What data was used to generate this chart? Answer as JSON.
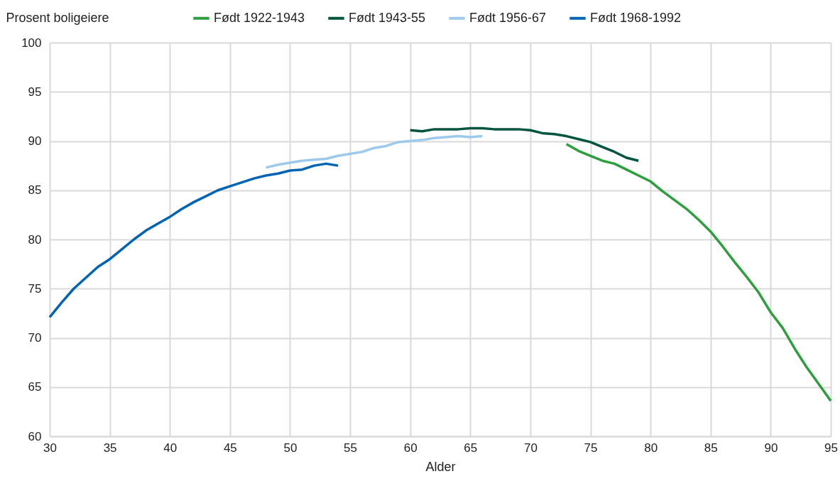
{
  "chart_data": {
    "type": "line",
    "xlabel": "Alder",
    "ylabel": "Prosent boligeiere",
    "xlim": [
      30,
      95
    ],
    "xticks": [
      30,
      35,
      40,
      45,
      50,
      55,
      60,
      65,
      70,
      75,
      80,
      85,
      90,
      95
    ],
    "ylim": [
      60,
      100
    ],
    "yticks": [
      60,
      65,
      70,
      75,
      80,
      85,
      90,
      95,
      100
    ],
    "grid": true,
    "legend": "top",
    "line_style": "solid",
    "marker": "none",
    "series": [
      {
        "name": "Født 1922-1943",
        "color": "#2e9e3e",
        "x": [
          73,
          74,
          75,
          76,
          77,
          78,
          79,
          80,
          81,
          82,
          83,
          84,
          85,
          86,
          87,
          88,
          89,
          90,
          91,
          92,
          93,
          94,
          95
        ],
        "values": [
          89.7,
          89.0,
          88.5,
          88.0,
          87.7,
          87.1,
          86.5,
          85.9,
          84.9,
          84.0,
          83.1,
          82.0,
          80.8,
          79.3,
          77.7,
          76.2,
          74.6,
          72.6,
          71.0,
          68.9,
          67.0,
          65.3,
          63.6
        ]
      },
      {
        "name": "Født 1943-55",
        "color": "#005440",
        "x": [
          60,
          61,
          62,
          63,
          64,
          65,
          66,
          67,
          68,
          69,
          70,
          71,
          72,
          73,
          74,
          75,
          76,
          77,
          78,
          79
        ],
        "values": [
          91.1,
          91.0,
          91.2,
          91.2,
          91.2,
          91.3,
          91.3,
          91.2,
          91.2,
          91.2,
          91.1,
          90.8,
          90.7,
          90.5,
          90.2,
          89.9,
          89.4,
          88.9,
          88.3,
          88.0
        ]
      },
      {
        "name": "Født 1956-67",
        "color": "#9dc9ec",
        "x": [
          48,
          49,
          50,
          51,
          52,
          53,
          54,
          55,
          56,
          57,
          58,
          59,
          60,
          61,
          62,
          63,
          64,
          65,
          66
        ],
        "values": [
          87.3,
          87.6,
          87.8,
          88.0,
          88.1,
          88.2,
          88.5,
          88.7,
          88.9,
          89.3,
          89.5,
          89.9,
          90.0,
          90.1,
          90.3,
          90.4,
          90.5,
          90.4,
          90.5
        ]
      },
      {
        "name": "Født 1968-1992",
        "color": "#0064b4",
        "x": [
          30,
          31,
          32,
          33,
          34,
          35,
          36,
          37,
          38,
          39,
          40,
          41,
          42,
          43,
          44,
          45,
          46,
          47,
          48,
          49,
          50,
          51,
          52,
          53,
          54
        ],
        "values": [
          72.1,
          73.6,
          75.0,
          76.1,
          77.2,
          78.0,
          79.0,
          80.0,
          80.9,
          81.6,
          82.3,
          83.1,
          83.8,
          84.4,
          85.0,
          85.4,
          85.8,
          86.2,
          86.5,
          86.7,
          87.0,
          87.1,
          87.5,
          87.7,
          87.5
        ]
      }
    ]
  }
}
